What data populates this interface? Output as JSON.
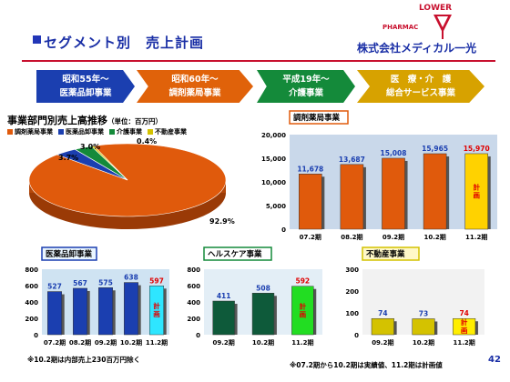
{
  "header": {
    "title": "セグメント別　売上計画",
    "logo_brand": "LOWER",
    "logo_pharmacy": "PHARMAC",
    "company": "株式会社メディカル一光"
  },
  "timeline": [
    {
      "line1": "昭和55年～",
      "line2": "医薬品卸事業",
      "color": "#1b3fb0"
    },
    {
      "line1": "昭和60年～",
      "line2": "調剤薬局事業",
      "color": "#e0620a"
    },
    {
      "line1": "平成19年～",
      "line2": "介護事業",
      "color": "#148a3a"
    },
    {
      "line1": "医　療・介　護",
      "line2": "総合サービス事業",
      "color": "#d7a200"
    }
  ],
  "pie_section": {
    "title": "事業部門別売上高推移",
    "unit": "（単位：百万円）",
    "legend": [
      {
        "label": "調剤薬局事業",
        "color": "#e05a0c"
      },
      {
        "label": "医薬品卸事業",
        "color": "#1b3fb0"
      },
      {
        "label": "介護事業",
        "color": "#148a3a"
      },
      {
        "label": "不動産事業",
        "color": "#d4c200"
      }
    ]
  },
  "footnotes": {
    "left": "※10.2期は内部売上230百万円除く",
    "right": "※07.2期から10.2期は実績値、11.2期は計画値",
    "page": "42"
  },
  "chart_data": [
    {
      "type": "pie",
      "title": "事業部門別売上高推移",
      "labels": [
        "調剤薬局事業",
        "医薬品卸事業",
        "介護事業",
        "不動産事業"
      ],
      "values": [
        92.9,
        3.7,
        3.0,
        0.4
      ],
      "value_labels": [
        "92.9%",
        "3.7%",
        "3.0%",
        "0.4%"
      ],
      "colors": [
        "#e05a0c",
        "#1b3fb0",
        "#148a3a",
        "#d4c200"
      ]
    },
    {
      "type": "bar",
      "title": "調剤薬局事業",
      "categories": [
        "07.2期",
        "08.2期",
        "09.2期",
        "10.2期",
        "11.2期"
      ],
      "values": [
        11678,
        13687,
        15008,
        15965,
        15970
      ],
      "value_labels": [
        "11,678",
        "13,687",
        "15,008",
        "15,965",
        "15,970"
      ],
      "yticks": [
        "0",
        "5,000",
        "10,000",
        "15,000",
        "20,000"
      ],
      "ylim": [
        0,
        20000
      ],
      "bar_color": "#e05a0c",
      "plan_color": "#ffd200",
      "plan_label": "計画"
    },
    {
      "type": "bar",
      "title": "医薬品卸事業",
      "categories": [
        "07.2期",
        "08.2期",
        "09.2期",
        "10.2期",
        "11.2期"
      ],
      "values": [
        527,
        567,
        575,
        638,
        597
      ],
      "value_labels": [
        "527",
        "567",
        "575",
        "638",
        "597"
      ],
      "yticks": [
        "0",
        "200",
        "400",
        "600",
        "800"
      ],
      "ylim": [
        0,
        800
      ],
      "bar_color": "#1b3fb0",
      "plan_color": "#2ee6ff",
      "plan_label": "計画"
    },
    {
      "type": "bar",
      "title": "ヘルスケア事業",
      "categories": [
        "09.2期",
        "10.2期",
        "11.2期"
      ],
      "values": [
        411,
        508,
        592
      ],
      "value_labels": [
        "411",
        "508",
        "592"
      ],
      "yticks": [
        "0",
        "200",
        "400",
        "600",
        "800"
      ],
      "ylim": [
        0,
        800
      ],
      "bar_color": "#0e5a3a",
      "plan_color": "#22dd22",
      "plan_label": "計画"
    },
    {
      "type": "bar",
      "title": "不動産事業",
      "categories": [
        "09.2期",
        "10.2期",
        "11.2期"
      ],
      "values": [
        74,
        73,
        74
      ],
      "value_labels": [
        "74",
        "73",
        "74"
      ],
      "yticks": [
        "0",
        "100",
        "200",
        "300"
      ],
      "ylim": [
        0,
        300
      ],
      "bar_color": "#d4c200",
      "plan_color": "#ffee00",
      "plan_label": "計画"
    }
  ]
}
